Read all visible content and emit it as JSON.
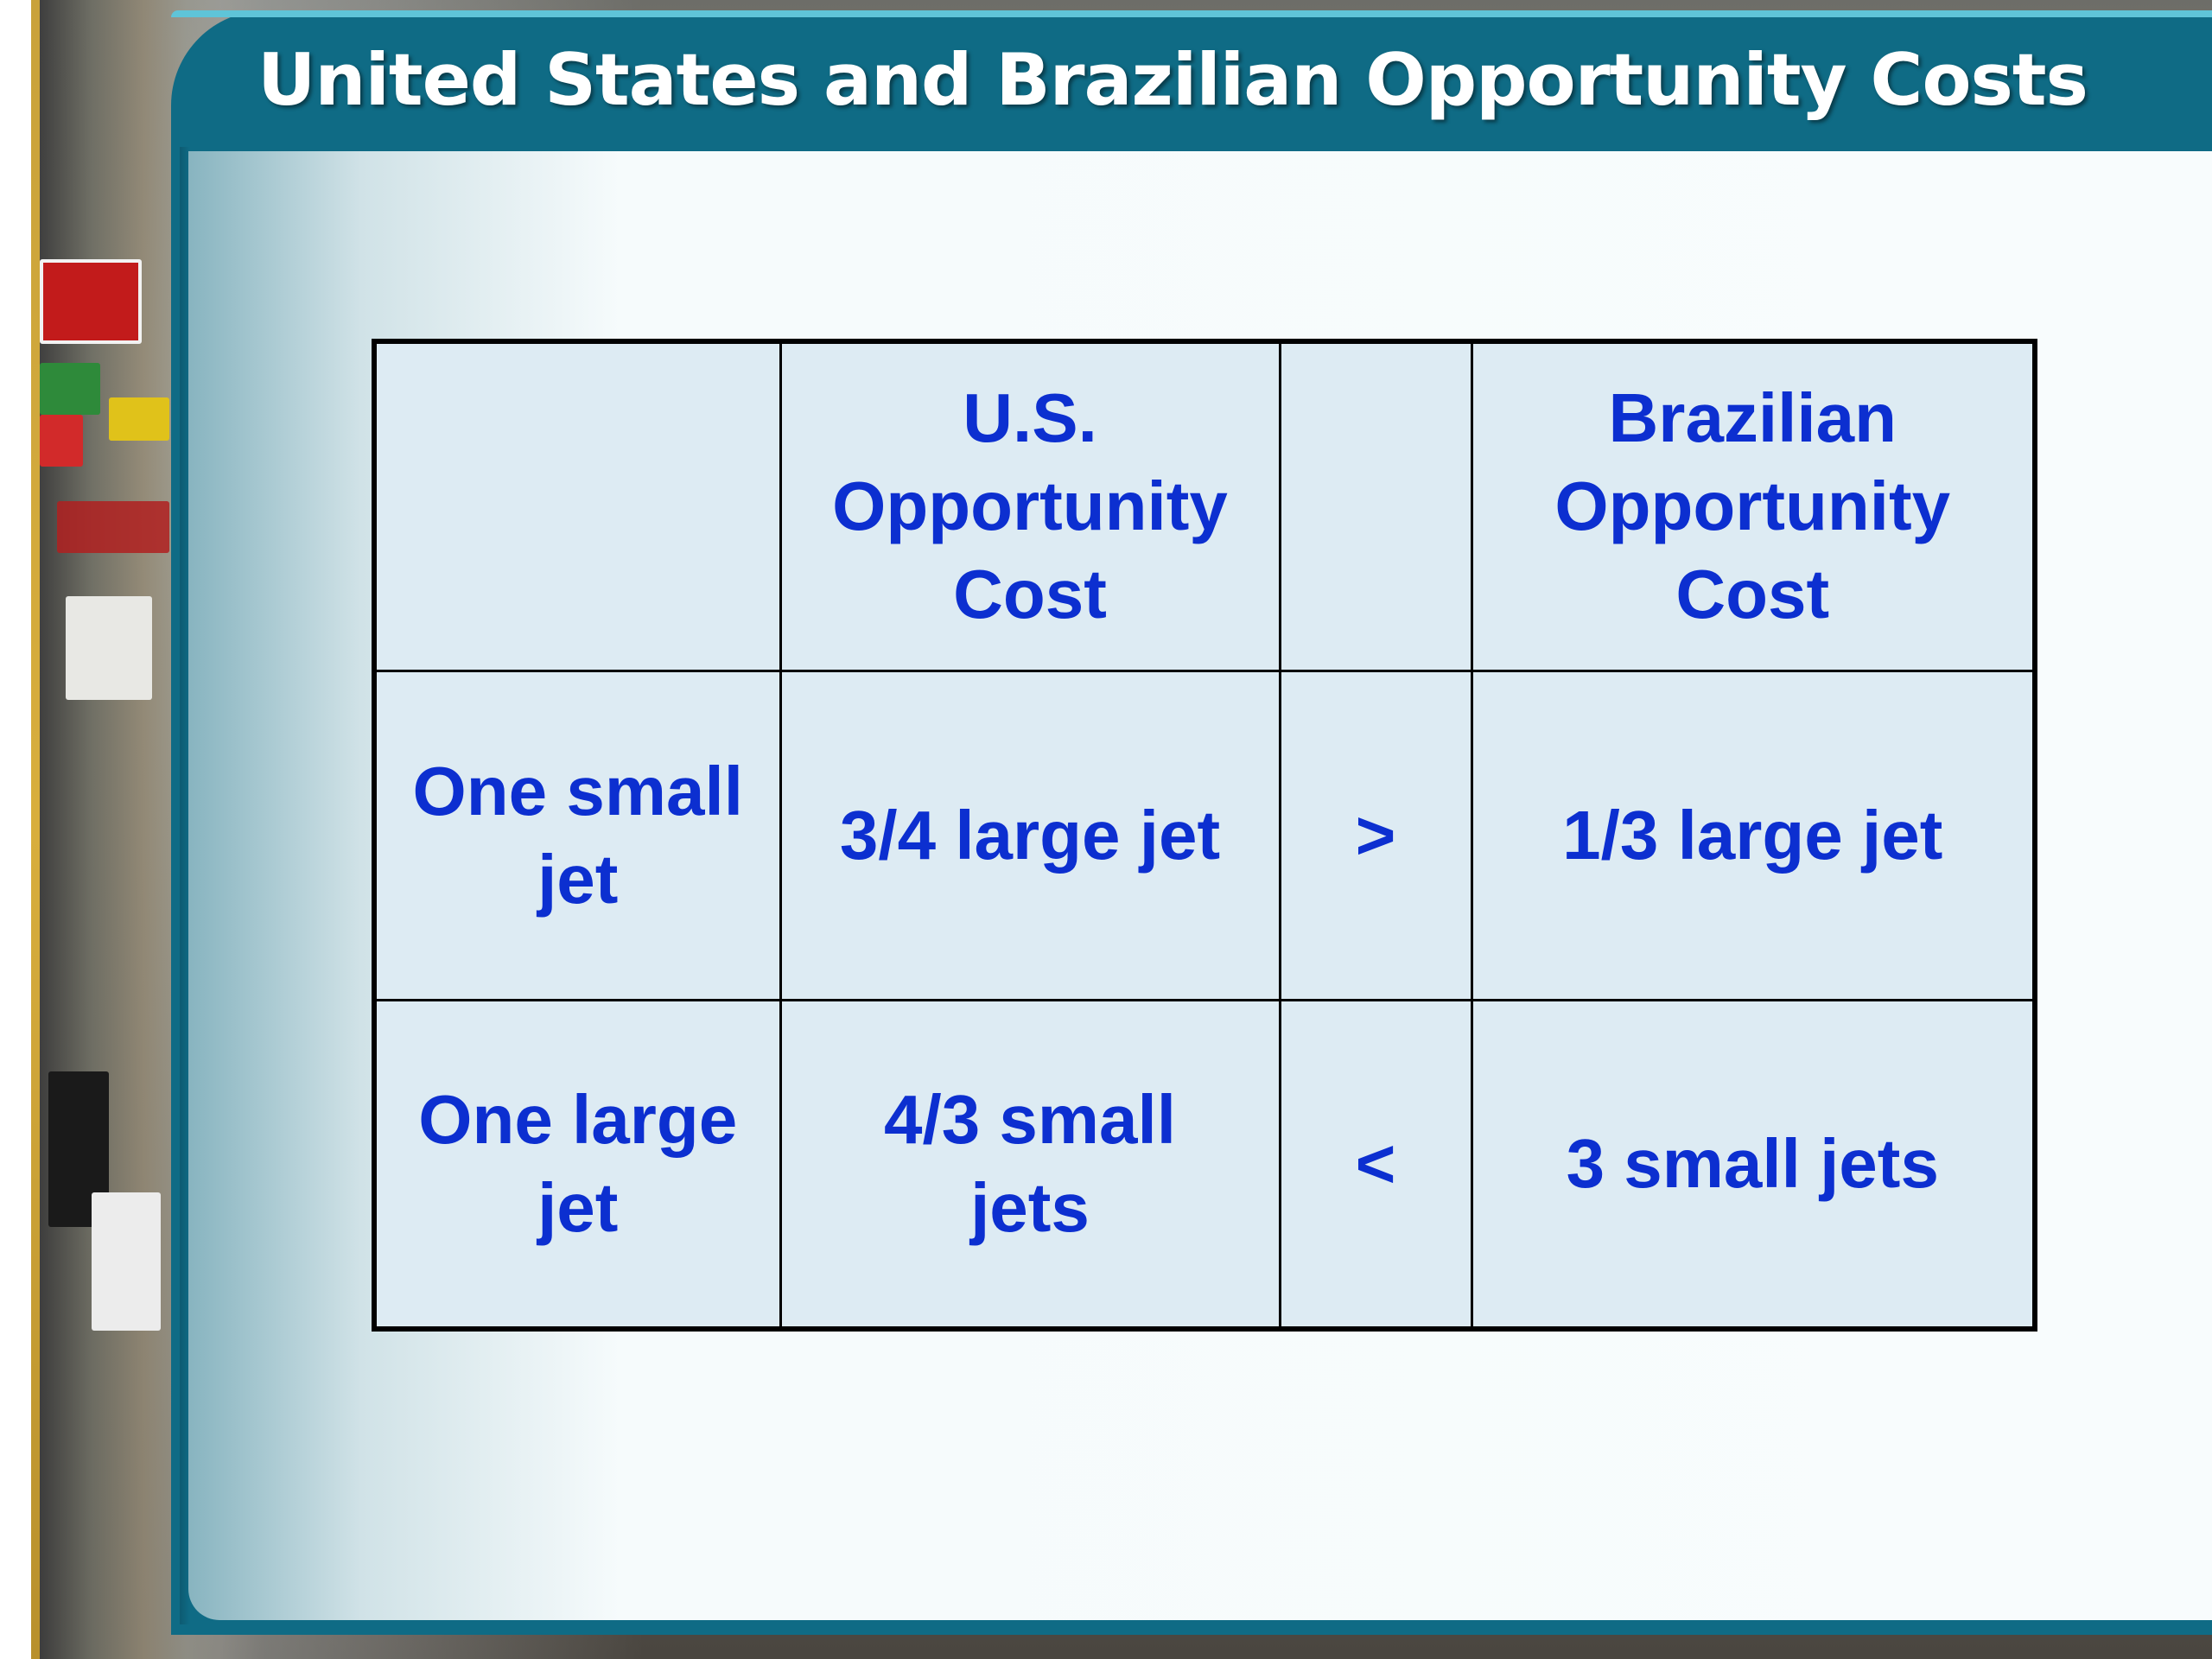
{
  "slide": {
    "title": "United States and Brazilian Opportunity Costs"
  },
  "table": {
    "header": {
      "blank_left": "",
      "us_line1": "U.S.",
      "us_line2": "Opportunity",
      "us_line3": "Cost",
      "blank_mid": "",
      "br_line1": "Brazilian",
      "br_line2": "Opportunity",
      "br_line3": "Cost"
    },
    "rows": [
      {
        "label_line1": "One small",
        "label_line2": "jet",
        "us_value": "3/4 large jet",
        "comparison": ">",
        "br_value": "1/3 large jet"
      },
      {
        "label_line1": "One large",
        "label_line2": "jet",
        "us_value_line1": "4/3 small",
        "us_value_line2": "jets",
        "comparison": "<",
        "br_value": "3 small jets"
      }
    ]
  },
  "colors": {
    "frame_teal": "#0f6b85",
    "frame_highlight": "#5fc4d8",
    "accent_gold": "#c9a23a",
    "table_fill": "#ddebf3",
    "table_text": "#0c2fd0",
    "title_text": "#ffffff"
  }
}
